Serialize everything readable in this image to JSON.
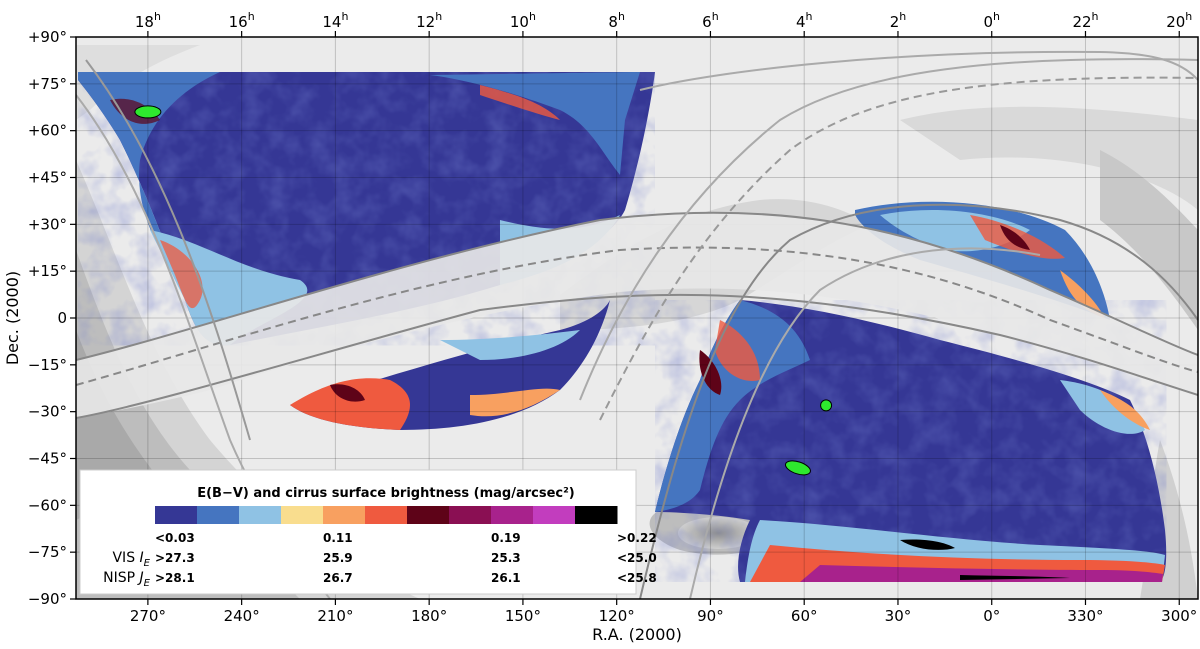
{
  "chart_data": {
    "type": "heatmap",
    "title": "E(B−V) and cirrus surface brightness (mag/arcsec²)",
    "xlabel": "R.A. (2000)",
    "ylabel": "Dec. (2000)",
    "x_ticks_bottom": [
      "270°",
      "240°",
      "210°",
      "180°",
      "150°",
      "120°",
      "90°",
      "60°",
      "30°",
      "0°",
      "330°",
      "300°"
    ],
    "x_tick_values": [
      270,
      240,
      210,
      180,
      150,
      120,
      90,
      60,
      30,
      0,
      -30,
      -60
    ],
    "x_ticks_top_hours": [
      "18",
      "16",
      "14",
      "12",
      "10",
      "8",
      "6",
      "4",
      "2",
      "0",
      "22",
      "20"
    ],
    "hour_superscript": "h",
    "y_ticks": [
      "+90°",
      "+75°",
      "+60°",
      "+45°",
      "+30°",
      "+15°",
      "0",
      "−15°",
      "−30°",
      "−45°",
      "−60°",
      "−75°",
      "−90°"
    ],
    "y_tick_values": [
      90,
      75,
      60,
      45,
      30,
      15,
      0,
      -15,
      -30,
      -45,
      -60,
      -75,
      -90
    ],
    "xlim": [
      293,
      -66
    ],
    "ylim": [
      -90,
      90
    ],
    "colorbar": {
      "colors": [
        "#353795",
        "#4575c0",
        "#8fc2e4",
        "#f9dd8e",
        "#f8a060",
        "#ef5a3f",
        "#5e0318",
        "#8a0f53",
        "#a8228c",
        "#c23dbe",
        "#000000"
      ],
      "labels": [
        "<0.03",
        "0.11",
        "0.19",
        ">0.22"
      ],
      "label_positions": [
        0,
        4,
        8,
        11
      ],
      "rows": [
        {
          "label_main": "VIS ",
          "label_sub": "I",
          "label_subscript": "E",
          "values": [
            ">27.3",
            "25.9",
            "25.3",
            "<25.0"
          ]
        },
        {
          "label_main": "NISP ",
          "label_sub": "J",
          "label_subscript": "E",
          "values": [
            ">28.1",
            "26.7",
            "26.1",
            "<25.8"
          ]
        }
      ]
    },
    "markers": [
      {
        "ra": 270,
        "dec": 66,
        "shape": "ellipse",
        "color": "#2ee82e"
      },
      {
        "ra": 53,
        "dec": -28,
        "shape": "circle",
        "color": "#2ee82e"
      },
      {
        "ra": 62,
        "dec": -48,
        "shape": "ellipse",
        "color": "#2ee82e"
      }
    ],
    "grid": true
  }
}
